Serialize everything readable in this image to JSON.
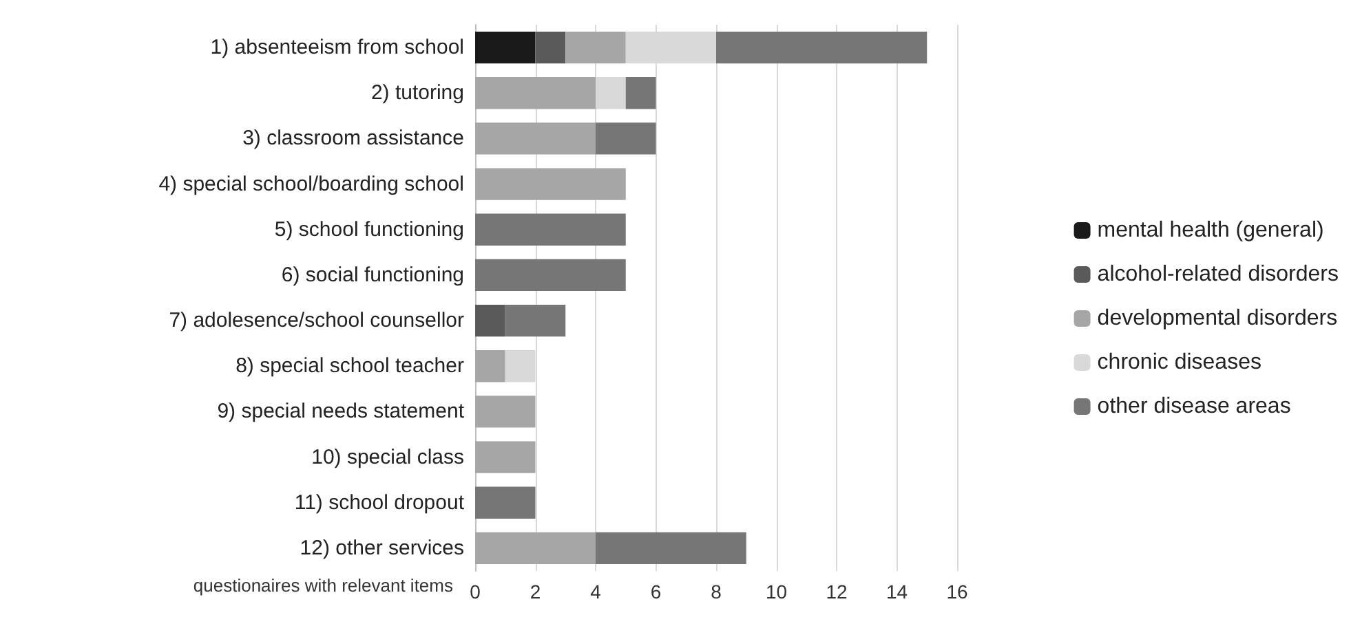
{
  "chart_data": {
    "type": "bar",
    "orientation": "horizontal",
    "stacked": true,
    "xlabel": "questionaires with relevant items",
    "categories": [
      "1) absenteeism from school",
      "2) tutoring",
      "3) classroom assistance",
      "4) special school/boarding school",
      "5) school functioning",
      "6) social functioning",
      "7) adolesence/school counsellor",
      "8) special school teacher",
      "9) special needs statement",
      "10) special class",
      "11) school dropout",
      "12) other services"
    ],
    "series": [
      {
        "name": "mental health (general)",
        "color": "#1a1a1a",
        "values": [
          2,
          0,
          0,
          0,
          0,
          0,
          0,
          0,
          0,
          0,
          0,
          0
        ]
      },
      {
        "name": "alcohol-related disorders",
        "color": "#5a5a5a",
        "values": [
          1,
          0,
          0,
          0,
          0,
          0,
          1,
          0,
          0,
          0,
          0,
          0
        ]
      },
      {
        "name": "developmental disorders",
        "color": "#a6a6a6",
        "values": [
          2,
          4,
          4,
          5,
          0,
          0,
          0,
          1,
          2,
          2,
          0,
          4
        ]
      },
      {
        "name": "chronic diseases",
        "color": "#d9d9d9",
        "values": [
          3,
          1,
          0,
          0,
          0,
          0,
          0,
          1,
          0,
          0,
          0,
          0
        ]
      },
      {
        "name": "other disease areas",
        "color": "#767676",
        "values": [
          7,
          1,
          2,
          0,
          5,
          5,
          2,
          0,
          0,
          0,
          2,
          5
        ]
      }
    ],
    "xlim": [
      0,
      16
    ],
    "xticks": [
      0,
      2,
      4,
      6,
      8,
      10,
      12,
      14,
      16
    ],
    "grid": "x",
    "legend": "right"
  }
}
